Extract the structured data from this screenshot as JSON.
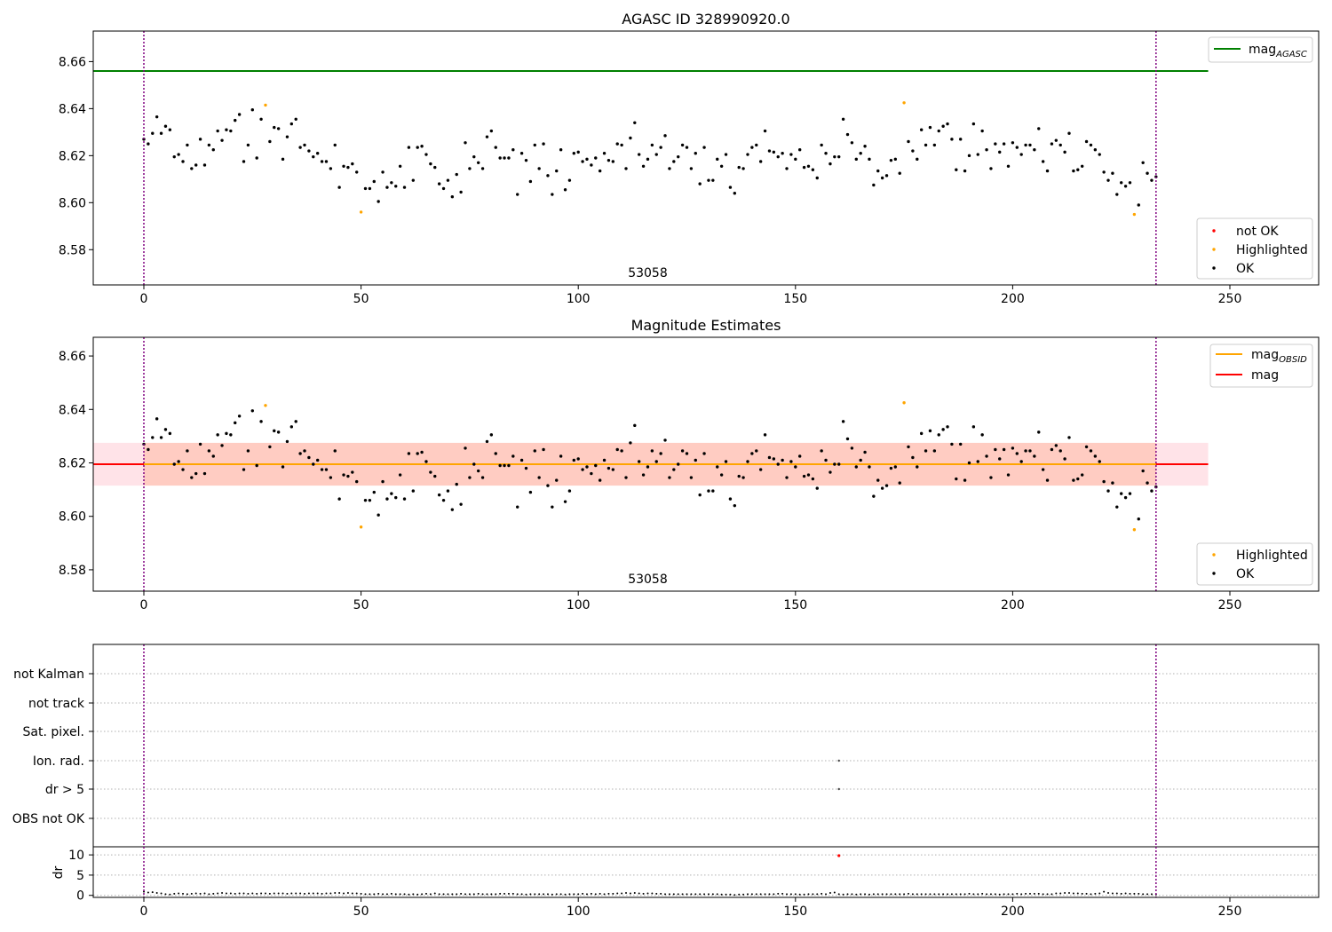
{
  "chart_data": [
    {
      "type": "scatter",
      "title": "AGASC ID 328990920.0",
      "obsid_label": "53058",
      "xlabel": "",
      "ylabel": "",
      "xlim": [
        -11.6,
        270
      ],
      "ylim": [
        8.565,
        8.673
      ],
      "x_ticks": [
        0,
        50,
        100,
        150,
        200,
        250
      ],
      "y_ticks": [
        8.58,
        8.6,
        8.62,
        8.64,
        8.66
      ],
      "obsid_boundaries_x": [
        0,
        233
      ],
      "series": [
        {
          "name": "mag_AGASC",
          "style": "line",
          "color": "#008000",
          "x": [
            -11.6,
            245
          ],
          "y": [
            8.656,
            8.656
          ]
        },
        {
          "name": "OK",
          "style": "points",
          "color": "#000000",
          "values_ref": "mag_points"
        },
        {
          "name": "Highlighted",
          "style": "points",
          "color": "#ffa500",
          "x": [
            28,
            50,
            175,
            228
          ],
          "y": [
            8.6415,
            8.596,
            8.6425,
            8.595
          ]
        },
        {
          "name": "not OK",
          "style": "points",
          "color": "#ff0000",
          "x": [],
          "y": []
        }
      ],
      "legend_upper": {
        "position": "top-right",
        "entries": [
          {
            "label": "mag",
            "sub": "AGASC",
            "color": "#008000"
          }
        ]
      },
      "legend_lower": {
        "position": "bottom-right",
        "entries": [
          {
            "label": "not OK",
            "color": "#ff0000"
          },
          {
            "label": "Highlighted",
            "color": "#ffa500"
          },
          {
            "label": "OK",
            "color": "#000000"
          }
        ]
      }
    },
    {
      "type": "scatter",
      "title": "Magnitude Estimates",
      "obsid_label": "53058",
      "xlim": [
        -11.6,
        270
      ],
      "ylim": [
        8.572,
        8.667
      ],
      "x_ticks": [
        0,
        50,
        100,
        150,
        200,
        250
      ],
      "y_ticks": [
        8.58,
        8.6,
        8.62,
        8.64,
        8.66
      ],
      "obsid_boundaries_x": [
        0,
        233
      ],
      "mag": 8.6195,
      "mag_band": [
        8.6115,
        8.6275
      ],
      "mag_obsid": 8.6195,
      "mag_obsid_band": [
        8.6115,
        8.6275
      ],
      "series": [
        {
          "name": "mag",
          "style": "line",
          "color": "#ff0000",
          "x": [
            -11.6,
            245
          ],
          "y": [
            8.6195,
            8.6195
          ]
        },
        {
          "name": "mag_OBSID",
          "style": "line",
          "color": "#ffa500",
          "x": [
            0,
            233
          ],
          "y": [
            8.6195,
            8.6195
          ]
        },
        {
          "name": "OK",
          "style": "points",
          "color": "#000000",
          "values_ref": "mag_points"
        },
        {
          "name": "Highlighted",
          "style": "points",
          "color": "#ffa500",
          "x": [
            28,
            50,
            175,
            228
          ],
          "y": [
            8.6415,
            8.596,
            8.6425,
            8.595
          ]
        }
      ],
      "legend_upper": {
        "position": "top-right",
        "entries": [
          {
            "label": "mag",
            "sub": "OBSID",
            "color": "#ffa500"
          },
          {
            "label": "mag",
            "sub": "",
            "color": "#ff0000"
          }
        ]
      },
      "legend_lower": {
        "position": "bottom-right",
        "entries": [
          {
            "label": "Highlighted",
            "color": "#ffa500"
          },
          {
            "label": "OK",
            "color": "#000000"
          }
        ]
      }
    },
    {
      "type": "scatter",
      "title": "",
      "xlim": [
        -11.6,
        270
      ],
      "x_ticks": [
        0,
        50,
        100,
        150,
        200,
        250
      ],
      "flag_categories": [
        "not Kalman",
        "not track",
        "Sat. pixel.",
        "Ion. rad.",
        "dr > 5",
        "OBS not OK"
      ],
      "flag_points": [
        {
          "category": "Ion. rad.",
          "x": 160
        },
        {
          "category": "dr > 5",
          "x": 160
        }
      ],
      "obsid_boundaries_x": [
        0,
        233
      ],
      "dr": {
        "ylabel": "dr",
        "ylim": [
          -0.5,
          12
        ],
        "y_ticks": [
          0,
          5,
          10
        ],
        "outlier_red": {
          "x": 160,
          "y": 9.8
        }
      }
    }
  ],
  "mag_points": [
    8.627,
    8.625,
    8.6295,
    8.6365,
    8.6295,
    8.6325,
    8.631,
    8.6195,
    8.6205,
    8.6175,
    8.6245,
    8.6145,
    8.616,
    8.627,
    8.616,
    8.6245,
    8.6225,
    8.6305,
    8.6265,
    8.631,
    8.6305,
    8.635,
    8.6375,
    8.6175,
    8.6245,
    8.6395,
    8.619,
    8.6355,
    8.6415,
    8.626,
    8.632,
    8.6315,
    8.6185,
    8.628,
    8.6335,
    8.6355,
    8.6235,
    8.6245,
    8.622,
    8.6195,
    8.621,
    8.6175,
    8.6175,
    8.6145,
    8.6245,
    8.6065,
    8.6155,
    8.615,
    8.6165,
    8.613,
    8.596,
    8.606,
    8.606,
    8.609,
    8.6005,
    8.613,
    8.6065,
    8.6085,
    8.607,
    8.6155,
    8.6065,
    8.6235,
    8.6095,
    8.6235,
    8.624,
    8.6205,
    8.6165,
    8.615,
    8.608,
    8.606,
    8.6095,
    8.6025,
    8.612,
    8.6045,
    8.6255,
    8.6145,
    8.6195,
    8.617,
    8.6145,
    8.628,
    8.6305,
    8.6235,
    8.619,
    8.619,
    8.619,
    8.6225,
    8.6035,
    8.621,
    8.618,
    8.609,
    8.6245,
    8.6145,
    8.625,
    8.6115,
    8.6035,
    8.6135,
    8.6225,
    8.6055,
    8.6095,
    8.621,
    8.6215,
    8.6175,
    8.6185,
    8.616,
    8.619,
    8.6135,
    8.621,
    8.618,
    8.6175,
    8.625,
    8.6245,
    8.6145,
    8.6275,
    8.634,
    8.6205,
    8.6155,
    8.6185,
    8.6245,
    8.6205,
    8.6235,
    8.6285,
    8.6145,
    8.6175,
    8.6195,
    8.6245,
    8.6235,
    8.6145,
    8.621,
    8.608,
    8.6235,
    8.6095,
    8.6095,
    8.6185,
    8.6155,
    8.6205,
    8.6065,
    8.604,
    8.615,
    8.6145,
    8.6205,
    8.6235,
    8.6245,
    8.6175,
    8.6305,
    8.622,
    8.6215,
    8.6195,
    8.621,
    8.6145,
    8.6205,
    8.6185,
    8.6225,
    8.615,
    8.6155,
    8.614,
    8.6105,
    8.6245,
    8.621,
    8.6165,
    8.6195,
    8.6195,
    8.6355,
    8.629,
    8.6255,
    8.6185,
    8.621,
    8.624,
    8.6185,
    8.6075,
    8.6135,
    8.6105,
    8.6115,
    8.618,
    8.6185,
    8.6125,
    8.6425,
    8.626,
    8.622,
    8.6185,
    8.631,
    8.6245,
    8.632,
    8.6245,
    8.6305,
    8.6325,
    8.6335,
    8.627,
    8.614,
    8.627,
    8.6135,
    8.62,
    8.6335,
    8.6205,
    8.6305,
    8.6225,
    8.6145,
    8.625,
    8.6215,
    8.625,
    8.6155,
    8.6255,
    8.6235,
    8.6205,
    8.6245,
    8.6245,
    8.6225,
    8.6315,
    8.6175,
    8.6135,
    8.625,
    8.6265,
    8.6245,
    8.6215,
    8.6295,
    8.6135,
    8.614,
    8.6155,
    8.626,
    8.6245,
    8.6225,
    8.6205,
    8.613,
    8.6095,
    8.6125,
    8.6035,
    8.6085,
    8.607,
    8.6085,
    8.595,
    8.599,
    8.617,
    8.6125,
    8.6095,
    8.611
  ],
  "dr_points": [
    0.9,
    0.7,
    0.8,
    0.6,
    0.5,
    0.3,
    0.2,
    0.4,
    0.5,
    0.4,
    0.3,
    0.4,
    0.5,
    0.4,
    0.5,
    0.3,
    0.4,
    0.5,
    0.6,
    0.5,
    0.5,
    0.4,
    0.5,
    0.5,
    0.4,
    0.5,
    0.4,
    0.5,
    0.5,
    0.4,
    0.5,
    0.5,
    0.5,
    0.4,
    0.5,
    0.5,
    0.5,
    0.4,
    0.5,
    0.5,
    0.5,
    0.4,
    0.5,
    0.5,
    0.6,
    0.6,
    0.5,
    0.6,
    0.5,
    0.5,
    0.4,
    0.3,
    0.3,
    0.3,
    0.4,
    0.3,
    0.3,
    0.4,
    0.3,
    0.3,
    0.3,
    0.2,
    0.3,
    0.2,
    0.3,
    0.4,
    0.3,
    0.5,
    0.3,
    0.3,
    0.3,
    0.3,
    0.3,
    0.4,
    0.3,
    0.3,
    0.3,
    0.4,
    0.3,
    0.3,
    0.3,
    0.3,
    0.4,
    0.4,
    0.4,
    0.4,
    0.3,
    0.3,
    0.2,
    0.3,
    0.3,
    0.3,
    0.3,
    0.3,
    0.2,
    0.3,
    0.3,
    0.2,
    0.3,
    0.3,
    0.3,
    0.4,
    0.3,
    0.4,
    0.3,
    0.4,
    0.3,
    0.4,
    0.4,
    0.5,
    0.5,
    0.6,
    0.5,
    0.6,
    0.5,
    0.4,
    0.5,
    0.5,
    0.4,
    0.4,
    0.3,
    0.3,
    0.3,
    0.3,
    0.3,
    0.3,
    0.3,
    0.3,
    0.3,
    0.3,
    0.3,
    0.3,
    0.3,
    0.2,
    0.2,
    0.2,
    0.1,
    0.2,
    0.2,
    0.3,
    0.3,
    0.3,
    0.3,
    0.3,
    0.3,
    0.3,
    0.4,
    0.4,
    0.3,
    0.3,
    0.3,
    0.2,
    0.2,
    0.3,
    0.3,
    0.3,
    0.4,
    0.3,
    0.6,
    0.7,
    0.3,
    0.2,
    0.3,
    0.3,
    0.2,
    0.3,
    0.3,
    0.2,
    0.3,
    0.3,
    0.3,
    0.3,
    0.3,
    0.3,
    0.3,
    0.3,
    0.4,
    0.3,
    0.3,
    0.3,
    0.3,
    0.3,
    0.3,
    0.3,
    0.3,
    0.3,
    0.3,
    0.3,
    0.3,
    0.3,
    0.4,
    0.3,
    0.3,
    0.4,
    0.3,
    0.3,
    0.3,
    0.2,
    0.3,
    0.3,
    0.3,
    0.4,
    0.3,
    0.4,
    0.4,
    0.4,
    0.4,
    0.3,
    0.3,
    0.3,
    0.5,
    0.5,
    0.6,
    0.6,
    0.5,
    0.5,
    0.4,
    0.4,
    0.3,
    0.4,
    0.5,
    0.9,
    0.6,
    0.5,
    0.5,
    0.4,
    0.5,
    0.4,
    0.4,
    0.4,
    0.3,
    0.3,
    0.3,
    0.2
  ]
}
